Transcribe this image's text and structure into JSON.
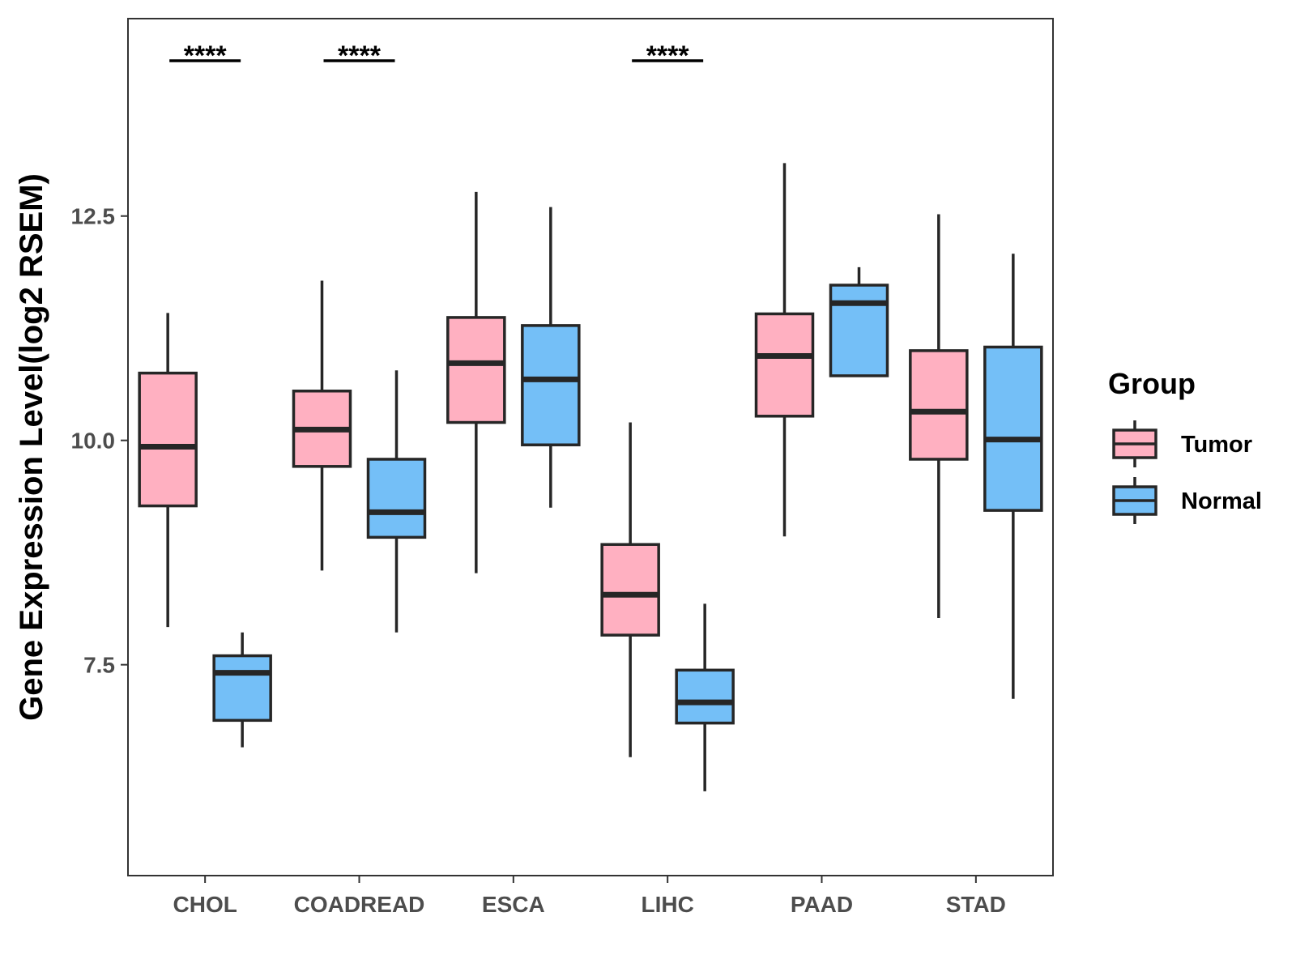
{
  "chart_data": {
    "type": "boxplot",
    "title": "",
    "xlabel": "",
    "ylabel": "Gene Expression Level(log2 RSEM)",
    "ylim": [
      5.15,
      14.7
    ],
    "yticks": [
      7.5,
      10.0,
      12.5
    ],
    "ytick_labels": [
      "7.5",
      "10.0",
      "12.5"
    ],
    "categories": [
      "CHOL",
      "COADREAD",
      "ESCA",
      "LIHC",
      "PAAD",
      "STAD"
    ],
    "legend": {
      "title": "Group",
      "position": "right",
      "entries": [
        {
          "name": "Tumor",
          "color": "#FFB0C1"
        },
        {
          "name": "Normal",
          "color": "#74BFF7"
        }
      ]
    },
    "series": [
      {
        "name": "Tumor",
        "color": "#FFB0C1",
        "boxes": [
          {
            "min": 7.92,
            "q1": 9.27,
            "median": 9.93,
            "q3": 10.75,
            "max": 11.42
          },
          {
            "min": 8.55,
            "q1": 9.71,
            "median": 10.12,
            "q3": 10.55,
            "max": 11.78
          },
          {
            "min": 8.52,
            "q1": 10.2,
            "median": 10.86,
            "q3": 11.37,
            "max": 12.77
          },
          {
            "min": 6.47,
            "q1": 7.83,
            "median": 8.28,
            "q3": 8.84,
            "max": 10.2
          },
          {
            "min": 8.93,
            "q1": 10.27,
            "median": 10.94,
            "q3": 11.41,
            "max": 13.09
          },
          {
            "min": 8.02,
            "q1": 9.79,
            "median": 10.32,
            "q3": 11.0,
            "max": 12.52
          }
        ]
      },
      {
        "name": "Normal",
        "color": "#74BFF7",
        "boxes": [
          {
            "min": 6.58,
            "q1": 6.88,
            "median": 7.41,
            "q3": 7.6,
            "max": 7.86
          },
          {
            "min": 7.86,
            "q1": 8.92,
            "median": 9.2,
            "q3": 9.79,
            "max": 10.78
          },
          {
            "min": 9.25,
            "q1": 9.95,
            "median": 10.68,
            "q3": 11.28,
            "max": 12.6
          },
          {
            "min": 6.09,
            "q1": 6.85,
            "median": 7.08,
            "q3": 7.44,
            "max": 8.18
          },
          {
            "min": 10.72,
            "q1": 10.72,
            "median": 11.53,
            "q3": 11.73,
            "max": 11.93
          },
          {
            "min": 7.12,
            "q1": 9.22,
            "median": 10.01,
            "q3": 11.04,
            "max": 12.08
          }
        ]
      }
    ],
    "annotations": [
      {
        "category": "CHOL",
        "label": "****"
      },
      {
        "category": "COADREAD",
        "label": "****"
      },
      {
        "category": "LIHC",
        "label": "****"
      }
    ]
  }
}
